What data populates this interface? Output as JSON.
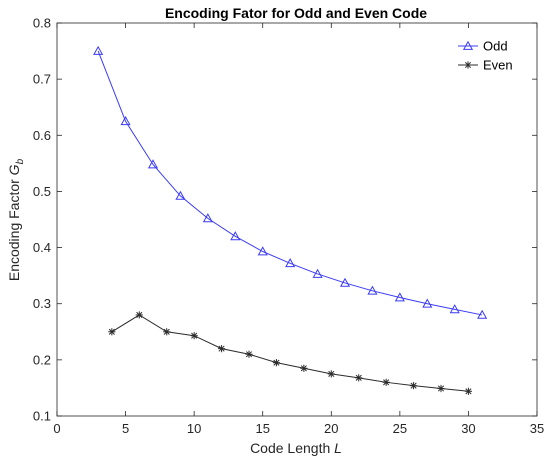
{
  "chart_data": {
    "type": "line",
    "title": "Encoding Fator for Odd and Even Code",
    "xlabel": {
      "text": "Code Length ",
      "italic": "L"
    },
    "ylabel": {
      "text": "Encoding Factor ",
      "italic": "G",
      "sub": "b"
    },
    "xlim": [
      0,
      35
    ],
    "ylim": [
      0.1,
      0.8
    ],
    "xticks": [
      0,
      5,
      10,
      15,
      20,
      25,
      30,
      35
    ],
    "yticks": [
      0.1,
      0.2,
      0.3,
      0.4,
      0.5,
      0.6,
      0.7,
      0.8
    ],
    "grid": false,
    "legend_position": "top-right",
    "series": [
      {
        "name": "Odd",
        "color": "#3b3bf5",
        "marker": "triangle",
        "x": [
          3,
          5,
          7,
          9,
          11,
          13,
          15,
          17,
          19,
          21,
          23,
          25,
          27,
          29,
          31
        ],
        "y": [
          0.75,
          0.625,
          0.548,
          0.492,
          0.452,
          0.42,
          0.393,
          0.372,
          0.353,
          0.337,
          0.323,
          0.311,
          0.3,
          0.29,
          0.28
        ]
      },
      {
        "name": "Even",
        "color": "#2b2b2b",
        "marker": "asterisk",
        "x": [
          4,
          6,
          8,
          10,
          12,
          14,
          16,
          18,
          20,
          22,
          24,
          26,
          28,
          30
        ],
        "y": [
          0.25,
          0.28,
          0.25,
          0.243,
          0.22,
          0.21,
          0.195,
          0.185,
          0.175,
          0.168,
          0.16,
          0.154,
          0.149,
          0.144
        ]
      }
    ]
  }
}
